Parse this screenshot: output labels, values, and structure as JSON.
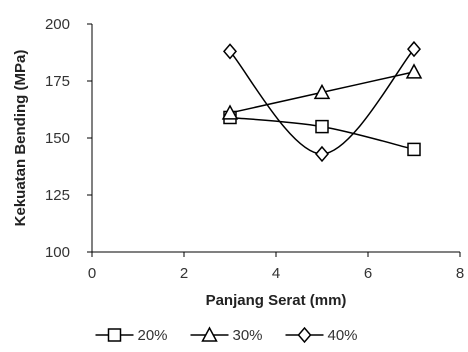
{
  "chart_data": {
    "type": "scatter",
    "xlabel": "Panjang Serat (mm)",
    "ylabel": "Kekuatan Bending (MPa)",
    "xlim": [
      0,
      8
    ],
    "ylim": [
      100,
      200
    ],
    "x_ticks": [
      "0",
      "2",
      "4",
      "6",
      "8"
    ],
    "y_ticks": [
      "100",
      "125",
      "150",
      "175",
      "200"
    ],
    "grid": false,
    "legend_position": "bottom",
    "series": [
      {
        "name": "20%",
        "marker": "square",
        "line": "smooth",
        "points": [
          [
            3,
            159
          ],
          [
            5,
            155
          ],
          [
            7,
            145
          ]
        ]
      },
      {
        "name": "30%",
        "marker": "triangle",
        "line": "smooth",
        "points": [
          [
            3,
            161
          ],
          [
            5,
            170
          ],
          [
            7,
            179
          ]
        ]
      },
      {
        "name": "40%",
        "marker": "diamond",
        "line": "smooth",
        "points": [
          [
            3,
            188
          ],
          [
            5,
            143
          ],
          [
            7,
            189
          ]
        ]
      }
    ],
    "colors": {
      "line": "#000000",
      "axis": "#000000",
      "marker_fill": "#ffffff"
    }
  }
}
